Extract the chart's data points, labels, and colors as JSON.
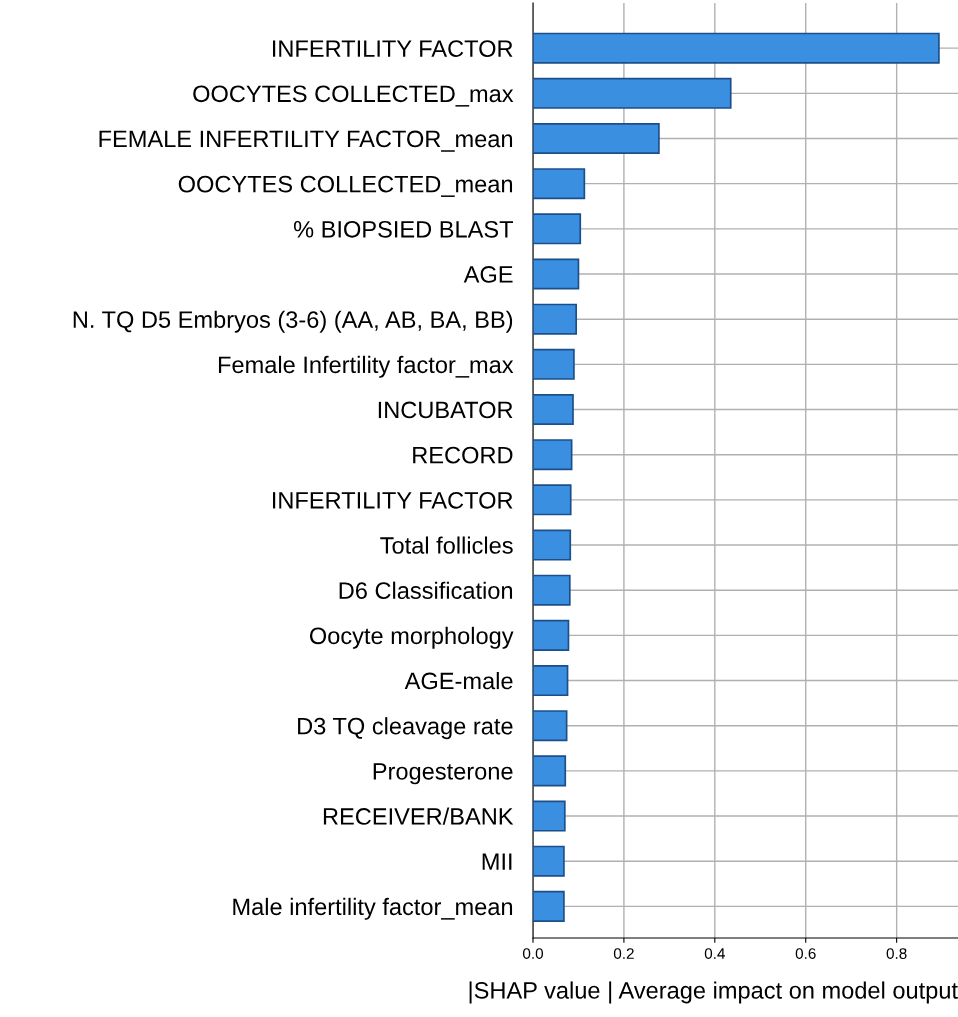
{
  "chart_data": {
    "type": "bar",
    "orientation": "horizontal",
    "xlabel": "|SHAP value | Average impact on model output",
    "categories": [
      "INFERTILITY FACTOR",
      "OOCYTES COLLECTED_max",
      "FEMALE INFERTILITY FACTOR_mean",
      "OOCYTES COLLECTED_mean",
      "% BIOPSIED BLAST",
      "AGE",
      "N. TQ D5 Embryos (3-6) (AA, AB, BA, BB)",
      "Female Infertility factor_max",
      "INCUBATOR",
      "RECORD",
      "INFERTILITY FACTOR",
      "Total follicles",
      "D6 Classification",
      "Oocyte morphology",
      "AGE-male",
      "D3 TQ cleavage rate",
      "Progesterone",
      "RECEIVER/BANK",
      "MII",
      "Male infertility factor_mean"
    ],
    "values": [
      0.893,
      0.435,
      0.277,
      0.113,
      0.104,
      0.1,
      0.095,
      0.09,
      0.088,
      0.085,
      0.083,
      0.082,
      0.081,
      0.078,
      0.076,
      0.074,
      0.071,
      0.07,
      0.068,
      0.068
    ],
    "color": "#3a8fe0",
    "xlim": [
      0,
      0.935
    ],
    "xticks": [
      {
        "value": 0,
        "label": "0.0"
      },
      0.2,
      0.4,
      0.6,
      0.8
    ],
    "grid": true
  }
}
